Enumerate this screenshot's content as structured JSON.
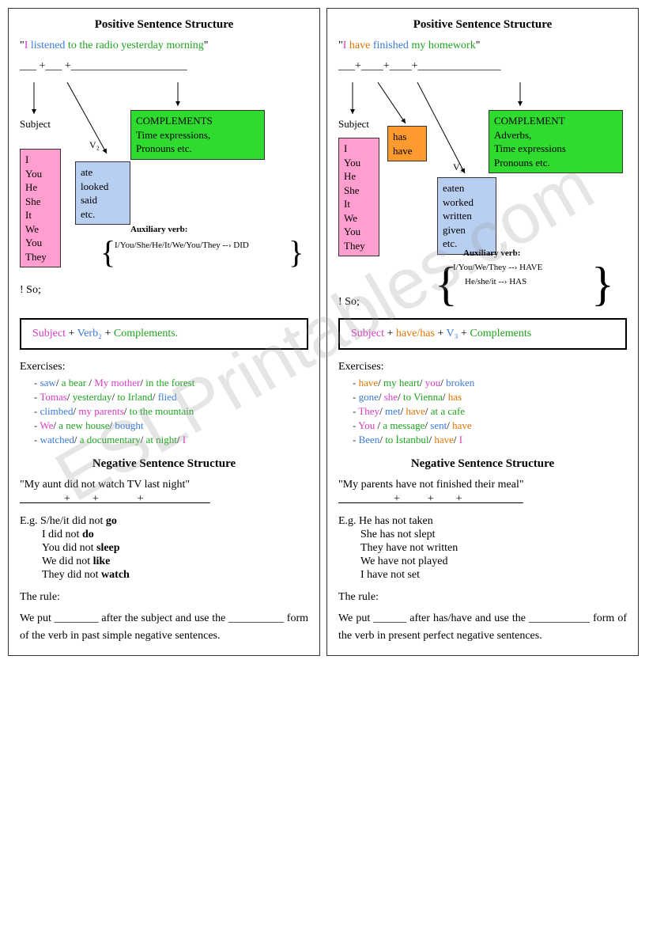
{
  "watermark": "ESLPrintables.com",
  "colors": {
    "magenta": "#d63cc4",
    "blue": "#3b7ad9",
    "green": "#1fa31f",
    "orange": "#e27400",
    "black": "#000000",
    "red": "#cc0000",
    "pinkBox": "#ff9ecf",
    "blueBox": "#b8cff2",
    "greenBox": "#2fdb2f",
    "orangeBox": "#ff9a2e"
  },
  "left": {
    "title": "Positive Sentence Structure",
    "example": {
      "q1": "\"",
      "subj": "I",
      "verb": " listened ",
      "comp": " to the radio yesterday morning",
      "q2": "\""
    },
    "blanks": "___ +___ +_____________________",
    "subjectLabel": "Subject",
    "v2Label": "V₂",
    "pinkList": "I\nYou\nHe\nShe\nIt\nWe\nYou\nThey",
    "blueList": "ate\nlooked\nsaid\netc.",
    "greenTitle": "COMPLEMENTS",
    "greenBody": "Time expressions,\nPronouns etc.",
    "auxLabel": "Auxiliary verb:",
    "auxText": "I/You/She/He/It/We/You/They --› DID",
    "so": "! So;",
    "formula": {
      "subj": "Subject",
      "plus1": " + ",
      "verb": "Verb₂",
      "plus2": " + ",
      "comp": "Complements."
    },
    "exercisesLabel": "Exercises:",
    "exercises": [
      [
        {
          "t": "saw",
          "c": "blue"
        },
        {
          "t": "/ ",
          "c": "black"
        },
        {
          "t": "a bear ",
          "c": "green"
        },
        {
          "t": "/ ",
          "c": "black"
        },
        {
          "t": "My mother",
          "c": "magenta"
        },
        {
          "t": "/ ",
          "c": "black"
        },
        {
          "t": "in the forest",
          "c": "green"
        }
      ],
      [
        {
          "t": "Tomas",
          "c": "magenta"
        },
        {
          "t": "/ ",
          "c": "black"
        },
        {
          "t": "yesterday",
          "c": "green"
        },
        {
          "t": "/ ",
          "c": "black"
        },
        {
          "t": "to Irland",
          "c": "green"
        },
        {
          "t": "/ ",
          "c": "black"
        },
        {
          "t": "flied",
          "c": "blue"
        }
      ],
      [
        {
          "t": "climbed",
          "c": "blue"
        },
        {
          "t": "/ ",
          "c": "black"
        },
        {
          "t": "my parents",
          "c": "magenta"
        },
        {
          "t": "/ ",
          "c": "black"
        },
        {
          "t": "to the mountain",
          "c": "green"
        }
      ],
      [
        {
          "t": "We",
          "c": "magenta"
        },
        {
          "t": "/ ",
          "c": "black"
        },
        {
          "t": "a new house",
          "c": "green"
        },
        {
          "t": "/ ",
          "c": "black"
        },
        {
          "t": "bought",
          "c": "blue"
        }
      ],
      [
        {
          "t": "watched",
          "c": "blue"
        },
        {
          "t": "/ ",
          "c": "black"
        },
        {
          "t": "a documentary",
          "c": "green"
        },
        {
          "t": "/ ",
          "c": "black"
        },
        {
          "t": "at night",
          "c": "green"
        },
        {
          "t": "/ ",
          "c": "black"
        },
        {
          "t": "I",
          "c": "magenta"
        }
      ]
    ],
    "negTitle": "Negative Sentence Structure",
    "negExample": "\"My aunt did   not   watch   TV last night\"",
    "negBlanks": "________+____+_______+____________",
    "egLines": [
      "E.g. S/he/it did not <b>go</b>",
      "I did not <b>do</b>",
      "You did not <b>sleep</b>",
      "We did not <b>like</b>",
      "They did not <b>watch</b>"
    ],
    "ruleLabel": "The rule:",
    "ruleText": "We put ________ after the subject and use the __________ form of the verb in past simple negative sentences."
  },
  "right": {
    "title": "Positive Sentence Structure",
    "example": {
      "q1": "\"",
      "subj": "I ",
      "aux": " have ",
      "verb": "finished ",
      "comp": " my homework",
      "q2": "\""
    },
    "blanks": "___+____+____+_______________",
    "subjectLabel": "Subject",
    "v3Label": "V₃",
    "pinkList": "I\nYou\nHe\nShe\nIt\nWe\nYou\nThey",
    "orangeList": "has\nhave",
    "blueList": "eaten\nworked\nwritten\ngiven\netc.",
    "greenTitle": "COMPLEMENT",
    "greenBody": "Adverbs,\nTime expressions\nPronouns etc.",
    "auxLabel": "Auxiliary verb:",
    "auxText1": "I/You/We/They --› HAVE",
    "auxText2": "He/she/it --› HAS",
    "so": "! So;",
    "formula": {
      "subj": "Subject",
      "plus1": " + ",
      "aux": "have/has",
      "plus2": " + ",
      "verb": "V₃",
      "plus3": " + ",
      "comp": "Complements"
    },
    "exercisesLabel": "Exercises:",
    "exercises": [
      [
        {
          "t": "have",
          "c": "orange"
        },
        {
          "t": "/ ",
          "c": "black"
        },
        {
          "t": "my heart",
          "c": "green"
        },
        {
          "t": "/ ",
          "c": "black"
        },
        {
          "t": "you",
          "c": "magenta"
        },
        {
          "t": "/ ",
          "c": "black"
        },
        {
          "t": "broken",
          "c": "blue"
        }
      ],
      [
        {
          "t": "gone",
          "c": "blue"
        },
        {
          "t": "/ ",
          "c": "black"
        },
        {
          "t": "she",
          "c": "magenta"
        },
        {
          "t": "/ ",
          "c": "black"
        },
        {
          "t": "to Vienna",
          "c": "green"
        },
        {
          "t": "/ ",
          "c": "black"
        },
        {
          "t": "has",
          "c": "orange"
        }
      ],
      [
        {
          "t": "They",
          "c": "magenta"
        },
        {
          "t": "/ ",
          "c": "black"
        },
        {
          "t": "met",
          "c": "blue"
        },
        {
          "t": "/ ",
          "c": "black"
        },
        {
          "t": "have",
          "c": "orange"
        },
        {
          "t": "/ ",
          "c": "black"
        },
        {
          "t": "at a cafe",
          "c": "green"
        }
      ],
      [
        {
          "t": "You ",
          "c": "magenta"
        },
        {
          "t": "/ ",
          "c": "black"
        },
        {
          "t": "a message",
          "c": "green"
        },
        {
          "t": "/ ",
          "c": "black"
        },
        {
          "t": "sent",
          "c": "blue"
        },
        {
          "t": "/ ",
          "c": "black"
        },
        {
          "t": "have",
          "c": "orange"
        }
      ],
      [
        {
          "t": "Been",
          "c": "blue"
        },
        {
          "t": "/ ",
          "c": "black"
        },
        {
          "t": "to İstanbul",
          "c": "green"
        },
        {
          "t": "/ ",
          "c": "black"
        },
        {
          "t": "have",
          "c": "orange"
        },
        {
          "t": "/ ",
          "c": "black"
        },
        {
          "t": "I",
          "c": "magenta"
        }
      ]
    ],
    "negTitle": "Negative Sentence Structure",
    "negExample": "\"My parents  have not finished their meal\"",
    "negBlanks": "__________+_____+____+___________",
    "egLines": [
      "E.g. He has not taken",
      "She has not slept",
      "They have not written",
      "We have not played",
      "I have not set"
    ],
    "ruleLabel": "The rule:",
    "ruleText": "We put ______ after has/have and use the ___________ form of the verb in present perfect negative sentences."
  }
}
